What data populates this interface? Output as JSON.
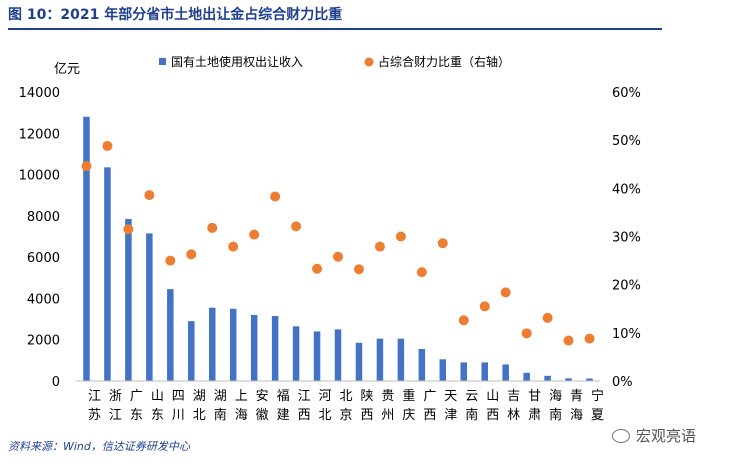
{
  "title": "图 10：2021 年部分省市土地出让金占综合财力比重",
  "source": "资料来源：Wind，信达证券研发中心",
  "watermark": "宏观亮语",
  "colors": {
    "bar": "#4472c4",
    "dot": "#ed7d31",
    "title": "#1f3f8f"
  },
  "chart_data": {
    "type": "bar",
    "left_axis_unit": "亿元",
    "categories": [
      "江苏",
      "浙江",
      "广东",
      "山东",
      "四川",
      "湖北",
      "湖南",
      "上海",
      "安徽",
      "福建",
      "江西",
      "河北",
      "北京",
      "陕西",
      "贵州",
      "重庆",
      "广西",
      "天津",
      "云南",
      "山西",
      "吉林",
      "甘肃",
      "海南",
      "青海",
      "宁夏"
    ],
    "series": [
      {
        "name": "国有土地使用权出让收入",
        "type": "bar",
        "axis": "left",
        "values": [
          12800,
          10350,
          7850,
          7150,
          4450,
          2900,
          3550,
          3500,
          3200,
          3150,
          2650,
          2400,
          2500,
          1850,
          2050,
          2050,
          1550,
          1050,
          900,
          900,
          800,
          400,
          250,
          130,
          120
        ]
      },
      {
        "name": "占综合财力比重（右轴）",
        "type": "scatter",
        "axis": "right",
        "values": [
          44.6,
          48.8,
          31.5,
          38.6,
          25.0,
          26.3,
          31.8,
          27.9,
          30.4,
          38.3,
          32.1,
          23.3,
          25.8,
          23.2,
          27.9,
          30.0,
          22.6,
          28.6,
          12.6,
          15.5,
          18.4,
          9.9,
          13.1,
          8.4,
          8.8
        ]
      }
    ],
    "y_left": {
      "min": 0,
      "max": 14000,
      "ticks": [
        0,
        2000,
        4000,
        6000,
        8000,
        10000,
        12000,
        14000
      ],
      "tick_labels": [
        "0",
        "2000",
        "4000",
        "6000",
        "8000",
        "10000",
        "12000",
        "14000"
      ]
    },
    "y_right": {
      "min": 0,
      "max": 60,
      "ticks": [
        0,
        10,
        20,
        30,
        40,
        50,
        60
      ],
      "tick_labels": [
        "0%",
        "10%",
        "20%",
        "30%",
        "40%",
        "50%",
        "60%"
      ]
    },
    "grid": false,
    "legend_position": "top"
  }
}
